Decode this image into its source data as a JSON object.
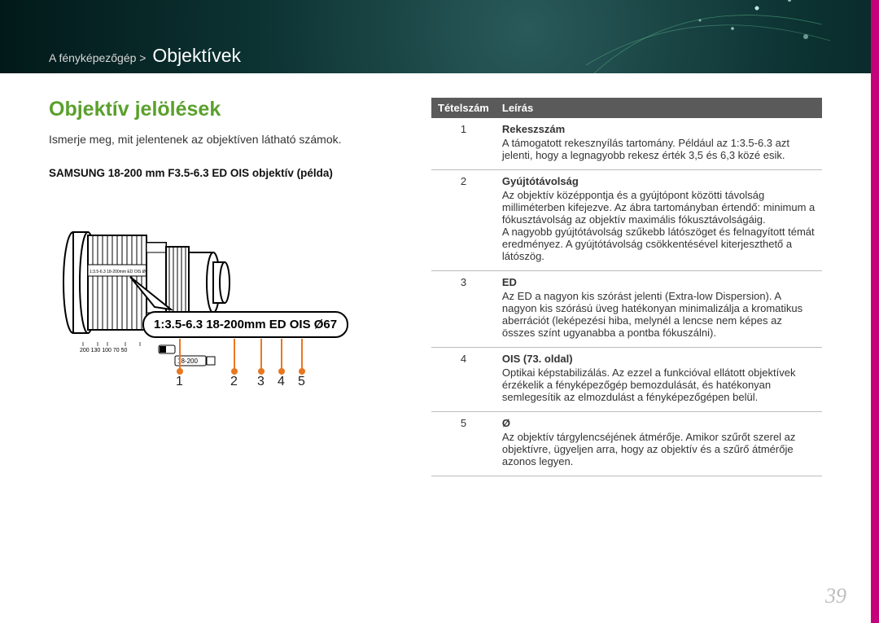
{
  "breadcrumb": {
    "pre": "A fényképezőgép >",
    "current": "Objektívek"
  },
  "section_title": "Objektív jelölések",
  "intro": "Ismerje meg, mit jelentenek az objektíven látható számok.",
  "example_heading": "SAMSUNG 18-200 mm F3.5-6.3 ED OIS objektív (példa)",
  "lens": {
    "engraving_top": "1:3.5-6.3 18-200mm ED OIS Ø67",
    "scale_marks": "200  130  100    70    50",
    "range_badge": "18-200",
    "callout_text": "1:3.5-6.3 18-200mm ED OIS Ø67",
    "pointers": [
      "1",
      "2",
      "3",
      "4",
      "5"
    ]
  },
  "table": {
    "headers": {
      "num": "Tételszám",
      "desc": "Leírás"
    },
    "rows": [
      {
        "n": "1",
        "title": "Rekeszszám",
        "body": "A támogatott rekesznyílás tartomány. Például az 1:3.5-6.3 azt jelenti, hogy a legnagyobb rekesz érték 3,5 és 6,3 közé esik."
      },
      {
        "n": "2",
        "title": "Gyújtótávolság",
        "body": "Az objektív középpontja és a gyújtópont közötti távolság milliméterben kifejezve. Az ábra tartományban értendő: minimum a fókusztávolság az objektív maximális fókusztávolságáig.\nA nagyobb gyújtótávolság szűkebb látószöget és felnagyított témát eredményez. A gyújtótávolság csökkentésével kiterjeszthető a látószög."
      },
      {
        "n": "3",
        "title": "ED",
        "body": "Az ED a nagyon kis szórást jelenti (Extra-low Dispersion). A nagyon kis szórású üveg hatékonyan minimalizálja a kromatikus aberrációt (leképezési hiba, melynél a lencse nem képes az összes színt ugyanabba a pontba fókuszálni)."
      },
      {
        "n": "4",
        "title": "OIS (73. oldal)",
        "body": "Optikai képstabilizálás. Az ezzel a funkcióval ellátott objektívek érzékelik a fényképezőgép bemozdulását, és hatékonyan semlegesítik az elmozdulást a fényképezőgépen belül."
      },
      {
        "n": "5",
        "title": "Ø",
        "body": "Az objektív tárgylencséjének átmérője. Amikor szűrőt szerel az objektívre, ügyeljen arra, hogy az objektív és a szűrő átmérője azonos legyen."
      }
    ]
  },
  "page_number": "39",
  "colors": {
    "accent_green": "#5aa02c",
    "side_magenta": "#c4007a",
    "pointer_orange": "#e87722",
    "header_th_bg": "#5a5a5a"
  }
}
